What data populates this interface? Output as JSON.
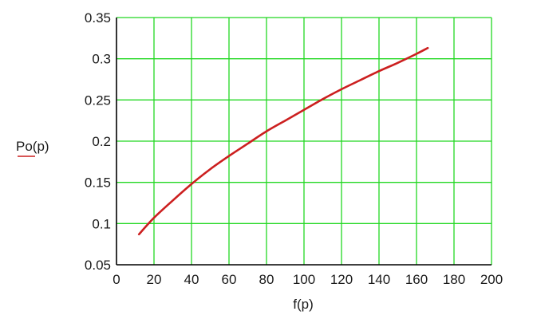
{
  "chart_data": {
    "type": "line",
    "xlabel": "f(p)",
    "ylabel": "Po(p)",
    "xlim": [
      0,
      200
    ],
    "ylim": [
      0.05,
      0.35
    ],
    "x_ticks": [
      "0",
      "20",
      "40",
      "60",
      "80",
      "100",
      "120",
      "140",
      "160",
      "180",
      "200"
    ],
    "y_ticks": [
      "0.35",
      "0.3",
      "0.25",
      "0.2",
      "0.15",
      "0.1",
      "0.05"
    ],
    "grid": true,
    "series": [
      {
        "color": "#cc1f1f",
        "x": [
          12,
          20,
          30,
          40,
          50,
          60,
          70,
          80,
          90,
          100,
          110,
          120,
          130,
          140,
          150,
          160,
          166
        ],
        "y": [
          0.087,
          0.107,
          0.128,
          0.148,
          0.166,
          0.182,
          0.197,
          0.212,
          0.225,
          0.238,
          0.251,
          0.263,
          0.274,
          0.285,
          0.295,
          0.306,
          0.313
        ]
      }
    ]
  },
  "colors": {
    "grid": "#22d822",
    "curve": "#cc1f1f",
    "axis": "#000000",
    "ylabel_underline": "#cc1f1f"
  }
}
